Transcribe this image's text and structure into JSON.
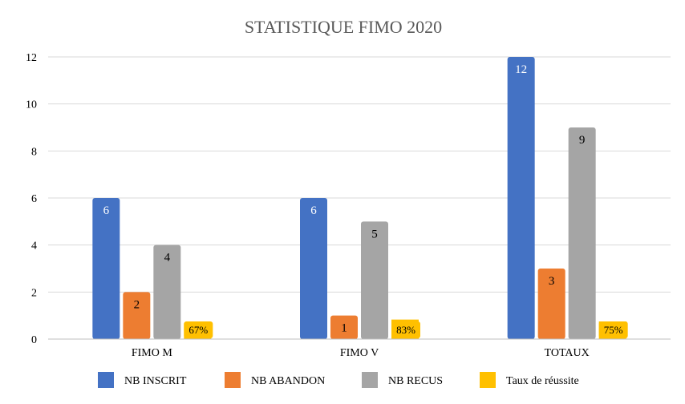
{
  "chart_data": {
    "type": "bar",
    "title": "STATISTIQUE FIMO 2020",
    "xlabel": "",
    "ylabel": "",
    "categories": [
      "FIMO M",
      "FIMO V",
      "TOTAUX"
    ],
    "yticks": [
      "0",
      "2",
      "4",
      "6",
      "8",
      "10",
      "12"
    ],
    "ylim": [
      0,
      12
    ],
    "grid": true,
    "legend_position": "bottom",
    "series": [
      {
        "name": "NB INSCRIT",
        "color": "#4472C4",
        "values": [
          6,
          6,
          12
        ],
        "labels": [
          "6",
          "6",
          "12"
        ]
      },
      {
        "name": "NB ABANDON",
        "color": "#ED7D31",
        "values": [
          2,
          1,
          3
        ],
        "labels": [
          "2",
          "1",
          "3"
        ]
      },
      {
        "name": "NB RECUS",
        "color": "#A5A5A5",
        "values": [
          4,
          5,
          9
        ],
        "labels": [
          "4",
          "5",
          "9"
        ]
      },
      {
        "name": "Taux de réussite",
        "color": "#FFC000",
        "values": [
          0.67,
          0.83,
          0.75
        ],
        "labels": [
          "67%",
          "83%",
          "75%"
        ]
      }
    ]
  }
}
